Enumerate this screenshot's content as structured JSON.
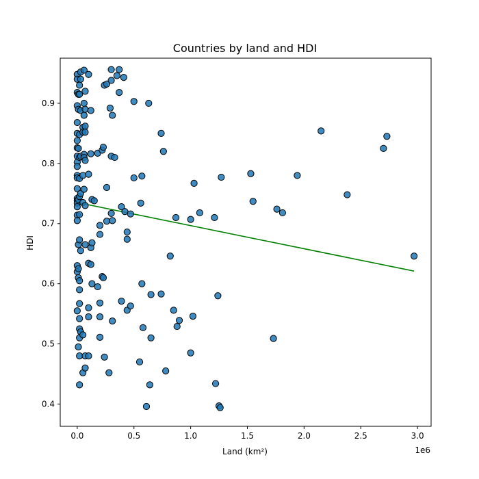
{
  "chart_data": {
    "type": "scatter",
    "title": "Countries by land and HDI",
    "xlabel": "Land (km²)",
    "ylabel": "HDI",
    "x_offset_label": "1e6",
    "xlim": [
      -0.15,
      3.12
    ],
    "ylim": [
      0.363,
      0.975
    ],
    "x_ticks": [
      0.0,
      0.5,
      1.0,
      1.5,
      2.0,
      2.5,
      3.0
    ],
    "x_tick_labels": [
      "0.0",
      "0.5",
      "1.0",
      "1.5",
      "2.0",
      "2.5",
      "3.0"
    ],
    "y_ticks": [
      0.4,
      0.5,
      0.6,
      0.7,
      0.8,
      0.9
    ],
    "y_tick_labels": [
      "0.4",
      "0.5",
      "0.6",
      "0.7",
      "0.8",
      "0.9"
    ],
    "grid": false,
    "colors": {
      "points": "#1f77b4",
      "point_edge": "#000000",
      "trend": "#008000"
    },
    "trend_line": {
      "x": [
        0.0,
        2.97
      ],
      "y": [
        0.735,
        0.621
      ]
    },
    "series": [
      {
        "points": [
          [
            0.0,
            0.948
          ],
          [
            0.0,
            0.94
          ],
          [
            0.0,
            0.918
          ],
          [
            0.0,
            0.896
          ],
          [
            0.0,
            0.868
          ],
          [
            0.0,
            0.85
          ],
          [
            0.0,
            0.838
          ],
          [
            0.0,
            0.826
          ],
          [
            0.0,
            0.812
          ],
          [
            0.0,
            0.802
          ],
          [
            0.0,
            0.795
          ],
          [
            0.0,
            0.78
          ],
          [
            0.0,
            0.776
          ],
          [
            0.0,
            0.758
          ],
          [
            0.0,
            0.742
          ],
          [
            0.0,
            0.738
          ],
          [
            0.0,
            0.734
          ],
          [
            0.0,
            0.728
          ],
          [
            0.0,
            0.714
          ],
          [
            0.0,
            0.705
          ],
          [
            0.0,
            0.63
          ],
          [
            0.0,
            0.62
          ],
          [
            0.0,
            0.555
          ],
          [
            0.01,
            0.915
          ],
          [
            0.01,
            0.89
          ],
          [
            0.01,
            0.825
          ],
          [
            0.01,
            0.74
          ],
          [
            0.01,
            0.665
          ],
          [
            0.01,
            0.625
          ],
          [
            0.01,
            0.61
          ],
          [
            0.01,
            0.495
          ],
          [
            0.02,
            0.93
          ],
          [
            0.02,
            0.915
          ],
          [
            0.02,
            0.848
          ],
          [
            0.02,
            0.81
          ],
          [
            0.02,
            0.775
          ],
          [
            0.02,
            0.745
          ],
          [
            0.02,
            0.715
          ],
          [
            0.02,
            0.673
          ],
          [
            0.02,
            0.605
          ],
          [
            0.02,
            0.59
          ],
          [
            0.02,
            0.567
          ],
          [
            0.02,
            0.542
          ],
          [
            0.02,
            0.525
          ],
          [
            0.02,
            0.51
          ],
          [
            0.02,
            0.48
          ],
          [
            0.02,
            0.432
          ],
          [
            0.03,
            0.952
          ],
          [
            0.03,
            0.94
          ],
          [
            0.03,
            0.888
          ],
          [
            0.03,
            0.812
          ],
          [
            0.03,
            0.75
          ],
          [
            0.03,
            0.655
          ],
          [
            0.03,
            0.52
          ],
          [
            0.05,
            0.86
          ],
          [
            0.05,
            0.852
          ],
          [
            0.05,
            0.78
          ],
          [
            0.05,
            0.735
          ],
          [
            0.05,
            0.515
          ],
          [
            0.05,
            0.452
          ],
          [
            0.06,
            0.955
          ],
          [
            0.06,
            0.9
          ],
          [
            0.06,
            0.88
          ],
          [
            0.06,
            0.815
          ],
          [
            0.06,
            0.81
          ],
          [
            0.06,
            0.757
          ],
          [
            0.07,
            0.92
          ],
          [
            0.07,
            0.89
          ],
          [
            0.07,
            0.862
          ],
          [
            0.07,
            0.852
          ],
          [
            0.07,
            0.805
          ],
          [
            0.07,
            0.73
          ],
          [
            0.07,
            0.665
          ],
          [
            0.07,
            0.48
          ],
          [
            0.07,
            0.46
          ],
          [
            0.1,
            0.948
          ],
          [
            0.1,
            0.782
          ],
          [
            0.1,
            0.634
          ],
          [
            0.1,
            0.56
          ],
          [
            0.1,
            0.545
          ],
          [
            0.1,
            0.48
          ],
          [
            0.12,
            0.888
          ],
          [
            0.12,
            0.816
          ],
          [
            0.12,
            0.66
          ],
          [
            0.12,
            0.632
          ],
          [
            0.13,
            0.74
          ],
          [
            0.13,
            0.668
          ],
          [
            0.13,
            0.6
          ],
          [
            0.15,
            0.738
          ],
          [
            0.18,
            0.817
          ],
          [
            0.18,
            0.595
          ],
          [
            0.2,
            0.697
          ],
          [
            0.2,
            0.682
          ],
          [
            0.2,
            0.568
          ],
          [
            0.2,
            0.545
          ],
          [
            0.2,
            0.511
          ],
          [
            0.22,
            0.822
          ],
          [
            0.22,
            0.612
          ],
          [
            0.23,
            0.827
          ],
          [
            0.23,
            0.61
          ],
          [
            0.24,
            0.93
          ],
          [
            0.24,
            0.478
          ],
          [
            0.26,
            0.76
          ],
          [
            0.26,
            0.704
          ],
          [
            0.26,
            0.932
          ],
          [
            0.28,
            0.452
          ],
          [
            0.29,
            0.892
          ],
          [
            0.3,
            0.956
          ],
          [
            0.3,
            0.938
          ],
          [
            0.3,
            0.812
          ],
          [
            0.3,
            0.717
          ],
          [
            0.31,
            0.88
          ],
          [
            0.31,
            0.705
          ],
          [
            0.31,
            0.538
          ],
          [
            0.33,
            0.81
          ],
          [
            0.35,
            0.946
          ],
          [
            0.37,
            0.956
          ],
          [
            0.37,
            0.918
          ],
          [
            0.39,
            0.728
          ],
          [
            0.39,
            0.571
          ],
          [
            0.41,
            0.943
          ],
          [
            0.42,
            0.72
          ],
          [
            0.44,
            0.686
          ],
          [
            0.44,
            0.674
          ],
          [
            0.44,
            0.556
          ],
          [
            0.47,
            0.716
          ],
          [
            0.47,
            0.563
          ],
          [
            0.5,
            0.903
          ],
          [
            0.5,
            0.776
          ],
          [
            0.55,
            0.47
          ],
          [
            0.56,
            0.734
          ],
          [
            0.57,
            0.779
          ],
          [
            0.57,
            0.6
          ],
          [
            0.58,
            0.527
          ],
          [
            0.61,
            0.396
          ],
          [
            0.63,
            0.9
          ],
          [
            0.64,
            0.432
          ],
          [
            0.65,
            0.582
          ],
          [
            0.65,
            0.51
          ],
          [
            0.74,
            0.85
          ],
          [
            0.74,
            0.583
          ],
          [
            0.76,
            0.82
          ],
          [
            0.78,
            0.455
          ],
          [
            0.82,
            0.646
          ],
          [
            0.85,
            0.556
          ],
          [
            0.87,
            0.71
          ],
          [
            0.88,
            0.529
          ],
          [
            0.9,
            0.539
          ],
          [
            1.0,
            0.707
          ],
          [
            1.0,
            0.485
          ],
          [
            1.02,
            0.546
          ],
          [
            1.03,
            0.767
          ],
          [
            1.08,
            0.718
          ],
          [
            1.21,
            0.71
          ],
          [
            1.22,
            0.434
          ],
          [
            1.24,
            0.58
          ],
          [
            1.25,
            0.397
          ],
          [
            1.26,
            0.394
          ],
          [
            1.27,
            0.777
          ],
          [
            1.53,
            0.783
          ],
          [
            1.55,
            0.737
          ],
          [
            1.73,
            0.509
          ],
          [
            1.76,
            0.724
          ],
          [
            1.81,
            0.718
          ],
          [
            1.94,
            0.78
          ],
          [
            2.15,
            0.854
          ],
          [
            2.38,
            0.748
          ],
          [
            2.7,
            0.825
          ],
          [
            2.73,
            0.845
          ],
          [
            2.97,
            0.646
          ]
        ]
      }
    ]
  }
}
